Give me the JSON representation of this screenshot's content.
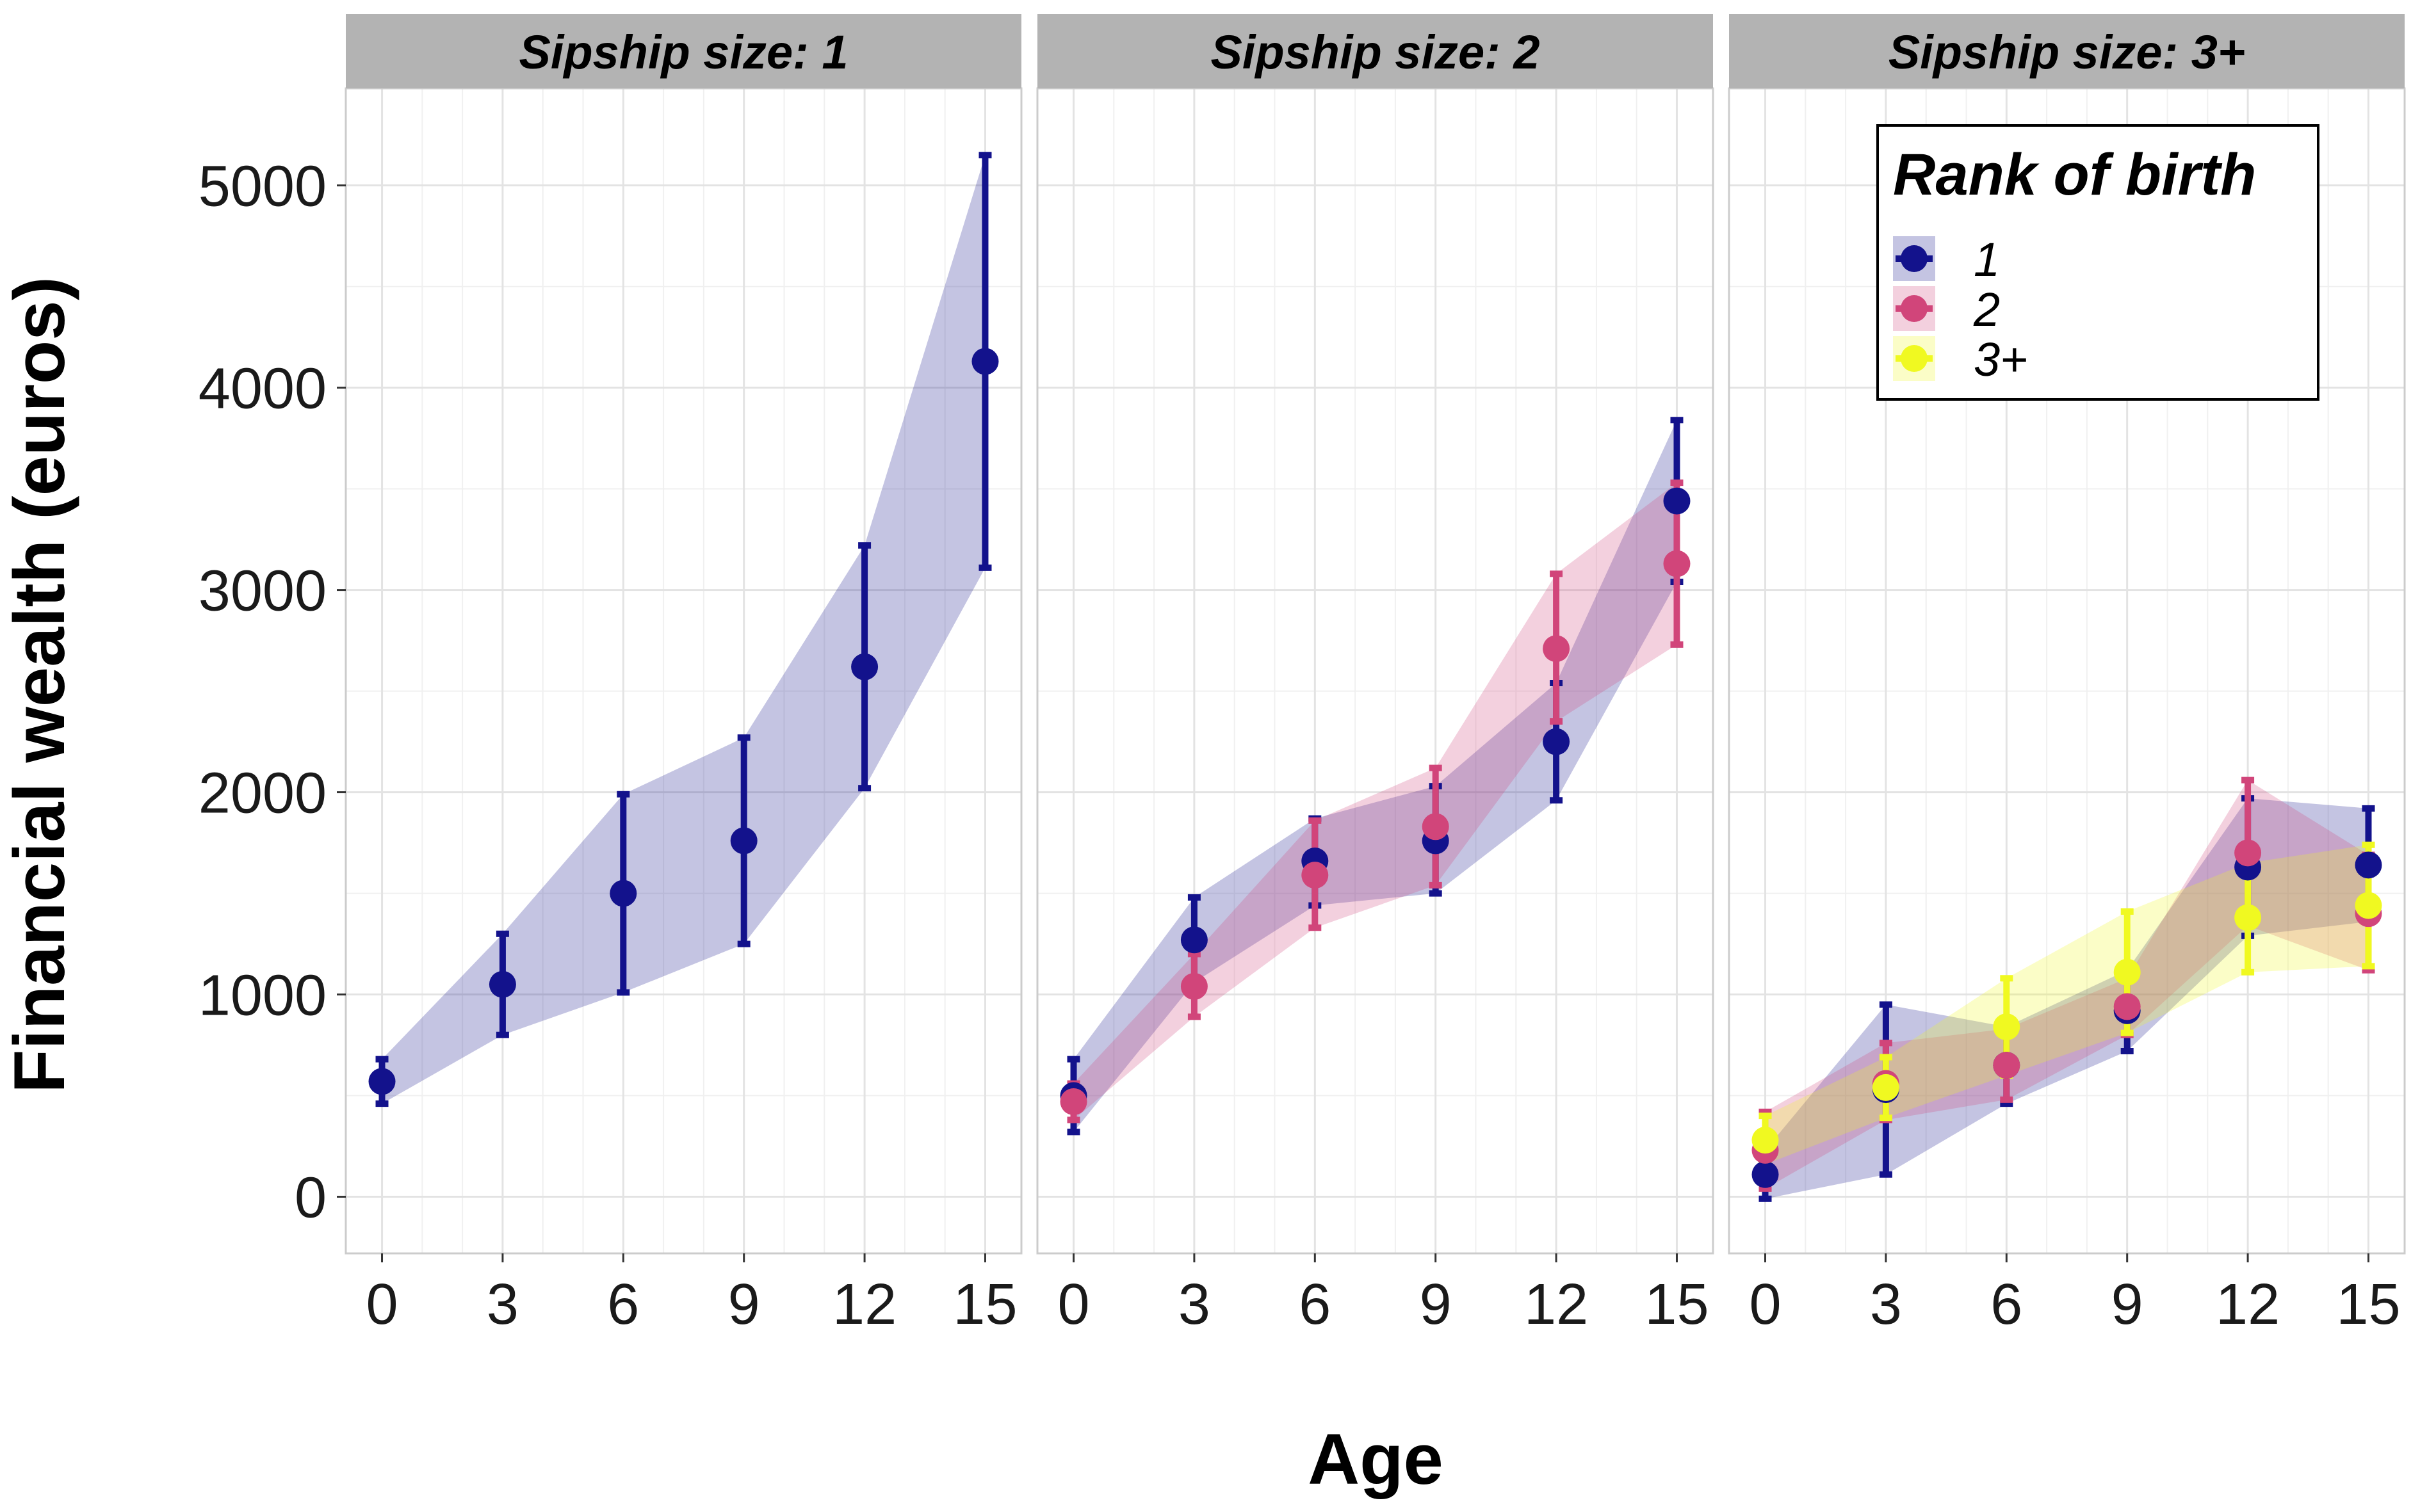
{
  "chart_data": {
    "type": "line",
    "xlabel": "Age",
    "ylabel": "Financial wealth (euros)",
    "x_ticks": [
      0,
      3,
      6,
      9,
      12,
      15
    ],
    "y_ticks": [
      0,
      1000,
      2000,
      3000,
      4000,
      5000
    ],
    "xlim": [
      -0.9,
      15.9
    ],
    "ylim": [
      -280,
      5480
    ],
    "grid": true,
    "legend": {
      "title": "Rank of birth",
      "placement": "top-right inside third panel",
      "entries": [
        {
          "label": "1",
          "color": "#13128C"
        },
        {
          "label": "2",
          "color": "#D1457A"
        },
        {
          "label": "3+",
          "color": "#F0F921"
        }
      ]
    },
    "panels": [
      {
        "label": "Sipship size: 1",
        "series": [
          {
            "name": "1",
            "color": "#13128C",
            "x": [
              0,
              3,
              6,
              9,
              12,
              15
            ],
            "y": [
              570,
              1050,
              1500,
              1760,
              2620,
              4130
            ],
            "lower": [
              460,
              800,
              1010,
              1250,
              2020,
              3110
            ],
            "upper": [
              680,
              1300,
              1990,
              2270,
              3220,
              5150
            ]
          }
        ]
      },
      {
        "label": "Sipship size: 2",
        "series": [
          {
            "name": "1",
            "color": "#13128C",
            "x": [
              0,
              3,
              6,
              9,
              12,
              15
            ],
            "y": [
              500,
              1270,
              1660,
              1760,
              2250,
              3440
            ],
            "lower": [
              320,
              1060,
              1440,
              1500,
              1960,
              3040
            ],
            "upper": [
              680,
              1480,
              1870,
              2030,
              2540,
              3840
            ]
          },
          {
            "name": "2",
            "color": "#D1457A",
            "x": [
              0,
              3,
              6,
              9,
              12,
              15
            ],
            "y": [
              470,
              1040,
              1590,
              1830,
              2710,
              3130
            ],
            "lower": [
              380,
              890,
              1330,
              1540,
              2350,
              2730
            ],
            "upper": [
              560,
              1200,
              1860,
              2120,
              3080,
              3530
            ]
          }
        ]
      },
      {
        "label": "Sipship size: 3+",
        "series": [
          {
            "name": "1",
            "color": "#13128C",
            "x": [
              0,
              3,
              6,
              9,
              12,
              15
            ],
            "y": [
              110,
              530,
              650,
              920,
              1630,
              1640
            ],
            "lower": [
              -10,
              110,
              460,
              720,
              1290,
              1360
            ],
            "upper": [
              230,
              950,
              840,
              1120,
              1970,
              1920
            ]
          },
          {
            "name": "2",
            "color": "#D1457A",
            "x": [
              0,
              3,
              6,
              9,
              12,
              15
            ],
            "y": [
              230,
              560,
              650,
              940,
              1700,
              1400
            ],
            "lower": [
              40,
              380,
              480,
              800,
              1340,
              1120
            ],
            "upper": [
              420,
              760,
              830,
              1080,
              2060,
              1690
            ]
          },
          {
            "name": "3+",
            "color": "#F0F921",
            "x": [
              0,
              3,
              6,
              9,
              12,
              15
            ],
            "y": [
              280,
              540,
              840,
              1110,
              1380,
              1440
            ],
            "lower": [
              160,
              390,
              600,
              810,
              1110,
              1140
            ],
            "upper": [
              400,
              690,
              1080,
              1410,
              1650,
              1740
            ]
          }
        ]
      }
    ]
  }
}
